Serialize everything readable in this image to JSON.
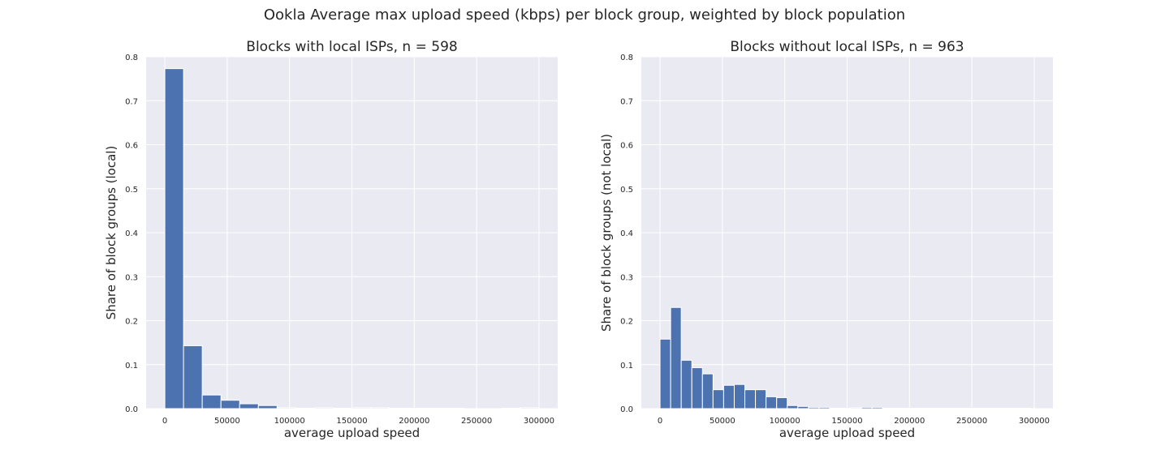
{
  "figure": {
    "suptitle": "Ookla Average max upload speed (kbps) per block group, weighted by block population"
  },
  "chart_data": [
    {
      "type": "bar",
      "title": "Blocks with local ISPs, n = 598",
      "xlabel": "average upload speed",
      "ylabel": "Share of block groups (local)",
      "xlim": [
        -15000,
        315000
      ],
      "ylim": [
        0,
        0.8
      ],
      "xticks": [
        0,
        50000,
        100000,
        150000,
        200000,
        250000,
        300000
      ],
      "xtick_labels": [
        "0",
        "50000",
        "100000",
        "150000",
        "200000",
        "250000",
        "300000"
      ],
      "yticks": [
        0,
        0.1,
        0.2,
        0.3,
        0.4,
        0.5,
        0.6,
        0.7,
        0.8
      ],
      "ytick_labels": [
        "0.0",
        "0.1",
        "0.2",
        "0.3",
        "0.4",
        "0.5",
        "0.6",
        "0.7",
        "0.8"
      ],
      "grid": true,
      "bin_edges": [
        0,
        15000,
        30000,
        45000,
        60000,
        75000,
        90000,
        105000,
        120000,
        135000,
        150000,
        165000,
        180000,
        195000,
        210000,
        225000,
        240000,
        255000,
        270000,
        285000,
        300000
      ],
      "values": [
        0.773,
        0.143,
        0.031,
        0.019,
        0.011,
        0.007,
        0.002,
        0.001,
        0.002,
        0.001,
        0.002,
        0.002,
        0.001,
        0.001,
        0.001,
        0.001,
        0.0,
        0.0,
        0.001,
        0.002
      ],
      "color": "#4c72b0"
    },
    {
      "type": "bar",
      "title": "Blocks without local ISPs, n = 963",
      "xlabel": "average upload speed",
      "ylabel": "Share of block groups (not local)",
      "xlim": [
        -15000,
        315000
      ],
      "ylim": [
        0,
        0.8
      ],
      "xticks": [
        0,
        50000,
        100000,
        150000,
        200000,
        250000,
        300000
      ],
      "xtick_labels": [
        "0",
        "50000",
        "100000",
        "150000",
        "200000",
        "250000",
        "300000"
      ],
      "yticks": [
        0,
        0.1,
        0.2,
        0.3,
        0.4,
        0.5,
        0.6,
        0.7,
        0.8
      ],
      "ytick_labels": [
        "0.0",
        "0.1",
        "0.2",
        "0.3",
        "0.4",
        "0.5",
        "0.6",
        "0.7",
        "0.8"
      ],
      "grid": true,
      "bin_edges": [
        0,
        8500,
        17000,
        25500,
        34000,
        42500,
        51000,
        59500,
        68000,
        76500,
        85000,
        93500,
        102000,
        110500,
        119000,
        127500,
        136000,
        144500,
        153000,
        161500,
        170000,
        178500,
        187000,
        195500,
        204000,
        212500,
        221000,
        229500,
        238000,
        246500,
        255000,
        263500,
        272000,
        280500,
        289000,
        297500
      ],
      "values": [
        0.158,
        0.23,
        0.11,
        0.093,
        0.079,
        0.043,
        0.053,
        0.055,
        0.043,
        0.043,
        0.027,
        0.025,
        0.007,
        0.005,
        0.003,
        0.003,
        0.001,
        0.001,
        0.002,
        0.003,
        0.003,
        0.001,
        0.001,
        0.001,
        0.001,
        0.001,
        0.001,
        0.001,
        0.001,
        0.001,
        0.001,
        0.001,
        0.001,
        0.001,
        0.001
      ],
      "color": "#4c72b0"
    }
  ]
}
